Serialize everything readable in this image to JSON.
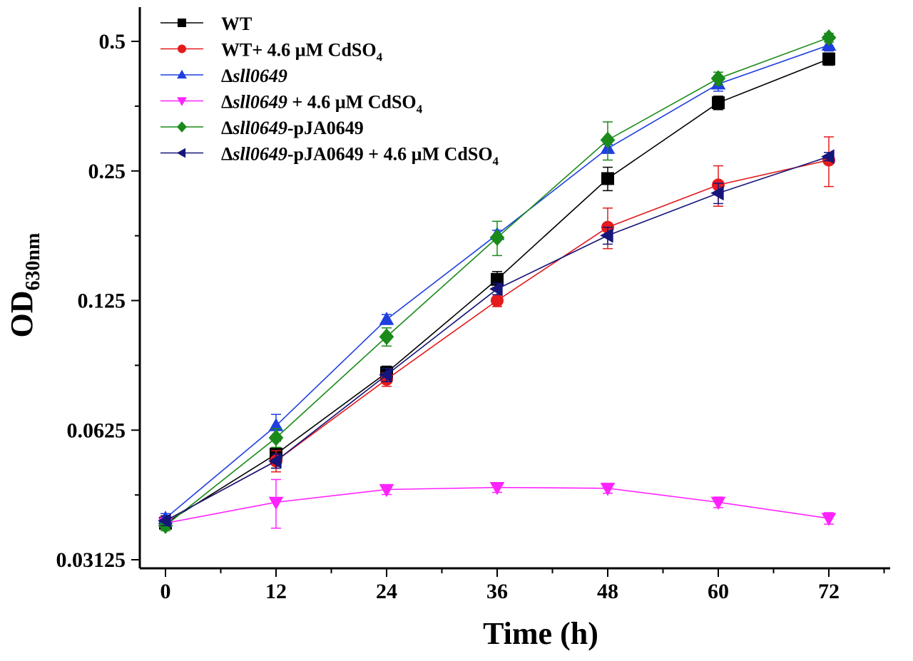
{
  "chart_data": {
    "type": "line",
    "title": "",
    "xlabel": "Time (h)",
    "ylabel": "OD",
    "ylabel_sub": "630nm",
    "yscale": "log2",
    "xlim": [
      -2,
      80
    ],
    "ylim": [
      0.03125,
      0.6
    ],
    "xticks": [
      0,
      12,
      24,
      36,
      48,
      60,
      72
    ],
    "xtick_labels": [
      "0",
      "12",
      "24",
      "36",
      "48",
      "60",
      "72"
    ],
    "yticks": [
      0.03125,
      0.0625,
      0.125,
      0.25,
      0.5
    ],
    "ytick_labels": [
      "0.03125",
      "0.0625",
      "0.125",
      "0.25",
      "0.5"
    ],
    "x": [
      0,
      12,
      24,
      36,
      48,
      60,
      72
    ],
    "series": [
      {
        "name": "WT",
        "legend": [
          {
            "text": "WT",
            "style": "normal"
          }
        ],
        "marker": "square",
        "color": "#000000",
        "values": [
          0.038,
          0.055,
          0.085,
          0.14,
          0.24,
          0.36,
          0.455
        ],
        "errors": [
          0.001,
          0.004,
          0.003,
          0.006,
          0.015,
          0.013,
          0.015
        ]
      },
      {
        "name": "WT+ 4.6 µM CdSO4",
        "legend": [
          {
            "text": "WT+ 4.6 µM CdSO",
            "style": "normal"
          },
          {
            "text": "4",
            "style": "sub"
          }
        ],
        "marker": "circle",
        "color": "#e41a1c",
        "values": [
          0.0385,
          0.053,
          0.082,
          0.125,
          0.185,
          0.232,
          0.265
        ],
        "errors": [
          0.001,
          0.003,
          0.003,
          0.004,
          0.02,
          0.025,
          0.035
        ]
      },
      {
        "name": "Δsll0649",
        "legend": [
          {
            "text": "Δ",
            "style": "normal"
          },
          {
            "text": "sll0649",
            "style": "italic"
          }
        ],
        "marker": "triangle-up",
        "color": "#1f3fe0",
        "values": [
          0.039,
          0.064,
          0.113,
          0.178,
          0.282,
          0.398,
          0.49
        ],
        "errors": [
          0.001,
          0.004,
          0.003,
          0.004,
          0.006,
          0.015,
          0.015
        ]
      },
      {
        "name": "Δsll0649 + 4.6 µM CdSO4",
        "legend": [
          {
            "text": "Δ",
            "style": "normal"
          },
          {
            "text": "sll0649",
            "style": "italic"
          },
          {
            "text": " + 4.6 µM CdSO",
            "style": "normal"
          },
          {
            "text": "4",
            "style": "sub"
          }
        ],
        "marker": "triangle-down",
        "color": "#ff22ff",
        "values": [
          0.038,
          0.0425,
          0.0455,
          0.046,
          0.0458,
          0.0425,
          0.039
        ],
        "errors": [
          0.001,
          0.0055,
          0.0012,
          0.0012,
          0.0012,
          0.0012,
          0.0012
        ]
      },
      {
        "name": "Δsll0649-pJA0649",
        "legend": [
          {
            "text": "Δ",
            "style": "normal"
          },
          {
            "text": "sll0649",
            "style": "italic"
          },
          {
            "text": "-pJA0649",
            "style": "normal"
          }
        ],
        "marker": "diamond",
        "color": "#1a8a1a",
        "values": [
          0.0375,
          0.06,
          0.103,
          0.175,
          0.295,
          0.41,
          0.51
        ],
        "errors": [
          0.001,
          0.003,
          0.005,
          0.016,
          0.03,
          0.014,
          0.012
        ]
      },
      {
        "name": "Δsll0649-pJA0649 + 4.6 µM CdSO4",
        "legend": [
          {
            "text": "Δ",
            "style": "normal"
          },
          {
            "text": "sll0649",
            "style": "italic"
          },
          {
            "text": "-pJA0649 + 4.6 µM CdSO",
            "style": "normal"
          },
          {
            "text": "4",
            "style": "sub"
          }
        ],
        "marker": "triangle-left",
        "color": "#15157a",
        "values": [
          0.0385,
          0.053,
          0.084,
          0.133,
          0.177,
          0.222,
          0.27
        ],
        "errors": [
          0.001,
          0.002,
          0.003,
          0.004,
          0.008,
          0.012,
          0.006
        ]
      }
    ]
  }
}
